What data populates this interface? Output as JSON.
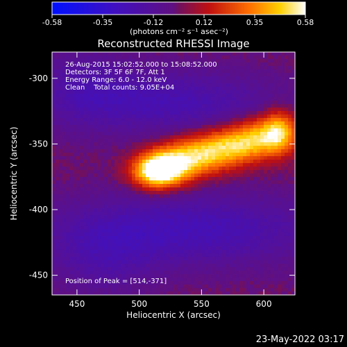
{
  "chart_data": {
    "type": "heatmap",
    "title": "Reconstructed RHESSI Image",
    "xlabel": "Heliocentric X (arcsec)",
    "ylabel": "Heliocentric Y (arcsec)",
    "xlim": [
      430,
      625
    ],
    "ylim": [
      -465,
      -280
    ],
    "xticks": [
      450,
      500,
      550,
      600
    ],
    "yticks": [
      -300,
      -350,
      -400,
      -450
    ],
    "colorbar": {
      "min": -0.58,
      "max": 0.58,
      "ticks": [
        "-0.58",
        "-0.35",
        "-0.12",
        "0.12",
        "0.35",
        "0.58"
      ],
      "label": "(photons cm⁻² s⁻¹ asec⁻²)"
    },
    "annotations": [
      "26-Aug-2015 15:02:52.000 to 15:08:52.000",
      "Detectors: 3F 5F 6F 7F, Att 1",
      "Energy Range: 6.0 - 12.0 keV",
      "Clean    Total counts: 9.05E+04"
    ],
    "peak_text": "Position of Peak = [514,-371]",
    "peak": {
      "x": 514,
      "y": -371
    },
    "timestamp": "23-May-2022 03:17"
  }
}
